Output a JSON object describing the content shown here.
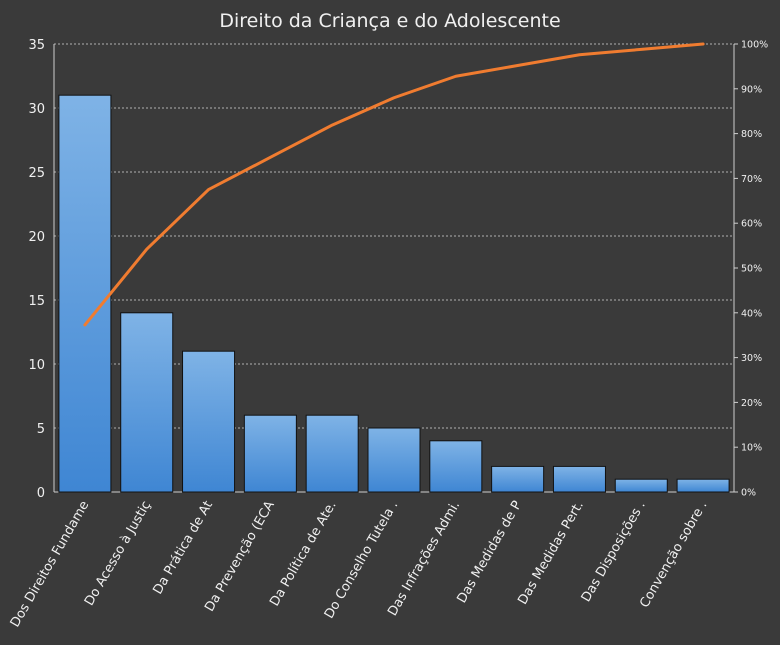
{
  "chart_data": {
    "type": "bar",
    "title": "Direito da Criança e do Adolescente",
    "xlabel": "",
    "ylabel": "",
    "ylim": [
      0,
      35
    ],
    "y_ticks": [
      "0",
      "5",
      "10",
      "15",
      "20",
      "25",
      "30",
      "35"
    ],
    "y2lim": [
      0,
      100
    ],
    "y2_ticks": [
      "0%",
      "10%",
      "20%",
      "30%",
      "40%",
      "50%",
      "60%",
      "70%",
      "80%",
      "90%",
      "100%"
    ],
    "grid": true,
    "categories": [
      "Dos Direitos Fundame",
      "Do Acesso à Justiç",
      "Da Prática de At",
      "Da Prevenção (ECA",
      "Da Política de Ate.",
      "Do Conselho Tutela .",
      "Das Infrações Admi.",
      "Das Medidas de P",
      "Das Medidas Pert.",
      "Das Disposições .",
      "Convenção sobre ."
    ],
    "series": [
      {
        "type": "bar",
        "axis": "left",
        "values": [
          31,
          14,
          11,
          6,
          6,
          5,
          4,
          2,
          2,
          1,
          1
        ],
        "color": "#4a90d9"
      },
      {
        "type": "line",
        "axis": "right",
        "values": [
          37.3,
          54.2,
          67.5,
          74.7,
          81.9,
          88.0,
          92.8,
          95.2,
          97.6,
          98.8,
          100
        ],
        "color": "#f07c30"
      }
    ]
  }
}
